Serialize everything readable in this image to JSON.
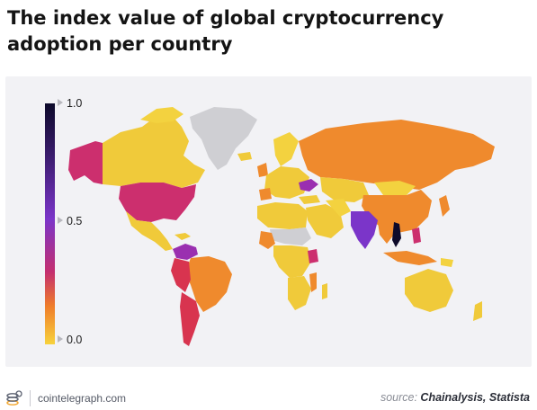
{
  "title": "The index value of global cryptocurrency adoption per country",
  "legend": {
    "ticks": [
      "1.0",
      "0.5",
      "0.0"
    ],
    "scale_min": 0.0,
    "scale_max": 1.0,
    "colors": {
      "high": "#0d0a2a",
      "mid": "#7b35c9",
      "upper_low": "#c42f6f",
      "low": "#ef7c2a",
      "lowest": "#f7d23c",
      "no_data": "#d3d3d6"
    }
  },
  "footer": {
    "site": "cointelegraph.com",
    "source_prefix": "source:",
    "source_names": "Chainalysis, Statista"
  }
}
